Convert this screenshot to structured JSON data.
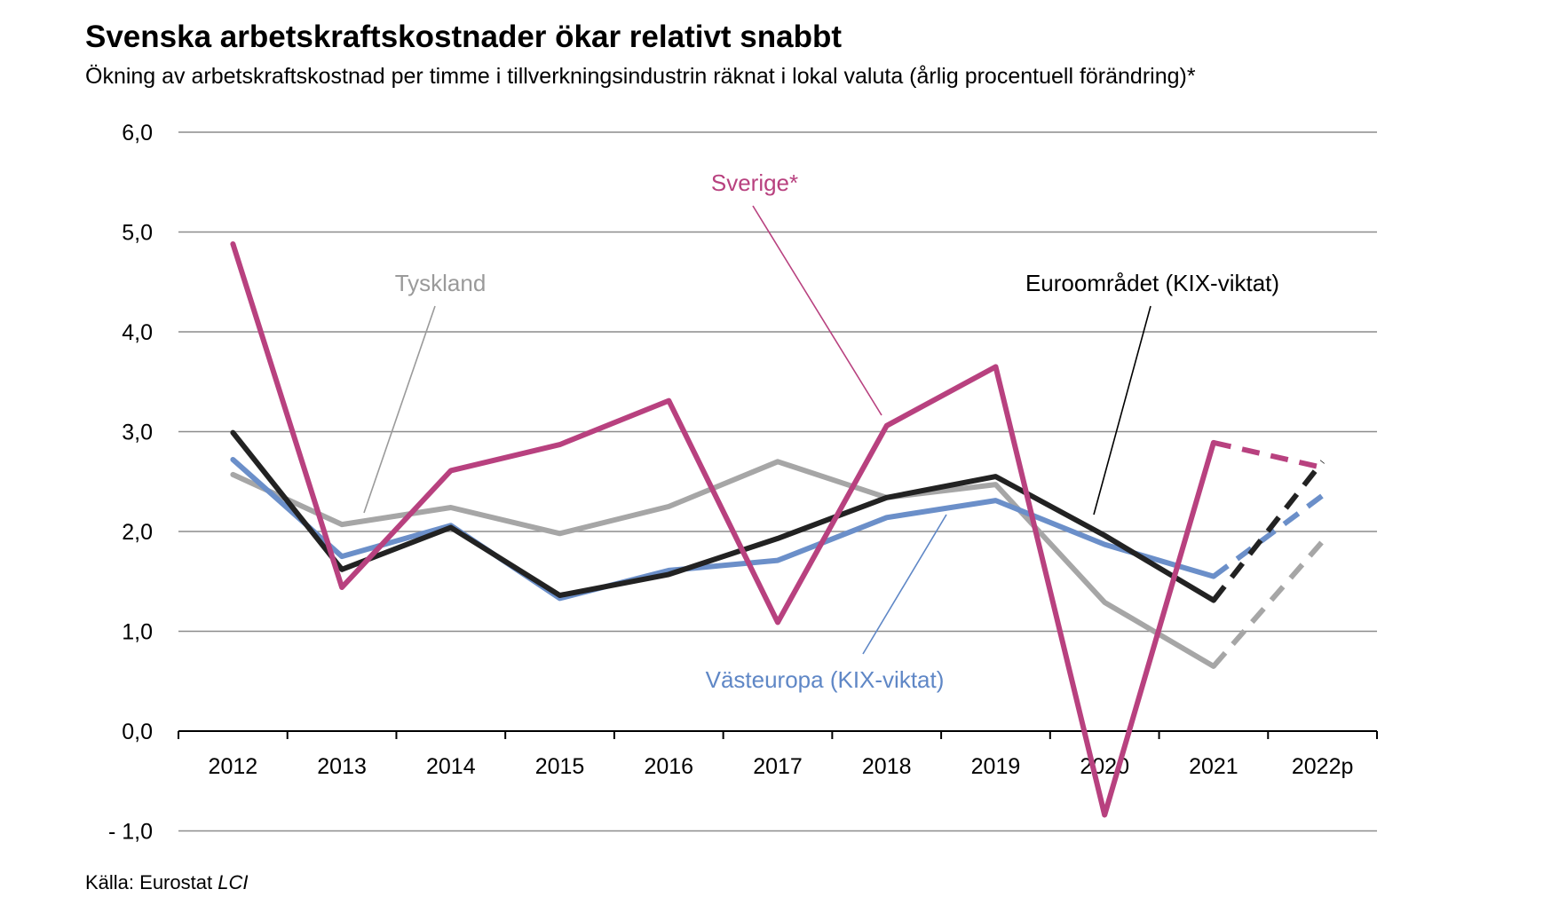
{
  "title": "Svenska arbetskraftskostnader ökar relativt snabbt",
  "subtitle": "Ökning av arbetskraftskostnad per timme i tillverkningsindustrin räknat i lokal valuta (årlig procentuell förändring)*",
  "source_prefix": "Källa: Eurostat",
  "source_italic": "LCI",
  "chart_data": {
    "type": "line",
    "categories": [
      "2012",
      "2013",
      "2014",
      "2015",
      "2016",
      "2017",
      "2018",
      "2019",
      "2020",
      "2021",
      "2022p"
    ],
    "ylim": [
      -1.0,
      6.0
    ],
    "yticks": [
      -1.0,
      0.0,
      1.0,
      2.0,
      3.0,
      4.0,
      5.0,
      6.0
    ],
    "ytick_labels": [
      "- 1,0",
      "0,0",
      "1,0",
      "2,0",
      "3,0",
      "4,0",
      "5,0",
      "6,0"
    ],
    "grid": true,
    "projection_category": "2022p",
    "series": [
      {
        "name": "Tyskland",
        "color": "#a6a6a6",
        "values": [
          2.57,
          2.07,
          2.24,
          1.98,
          2.25,
          2.7,
          2.34,
          2.47,
          1.29,
          0.65,
          1.9
        ]
      },
      {
        "name": "Västeuropa (KIX-viktat)",
        "color": "#6b8fc9",
        "values": [
          2.72,
          1.75,
          2.06,
          1.33,
          1.61,
          1.71,
          2.14,
          2.31,
          1.87,
          1.55,
          2.36
        ]
      },
      {
        "name": "Euroområdet (KIX-viktat)",
        "color": "#222222",
        "values": [
          2.99,
          1.62,
          2.04,
          1.36,
          1.57,
          1.93,
          2.34,
          2.55,
          1.96,
          1.31,
          2.7
        ]
      },
      {
        "name": "Sverige*",
        "color": "#b8417f",
        "values": [
          4.88,
          1.44,
          2.61,
          2.87,
          3.31,
          1.09,
          3.06,
          3.65,
          -0.84,
          2.89,
          2.64
        ]
      }
    ],
    "annotations": [
      "Sverige*",
      "Tyskland",
      "Euroområdet (KIX-viktat)",
      "Västeuropa (KIX-viktat)"
    ]
  }
}
